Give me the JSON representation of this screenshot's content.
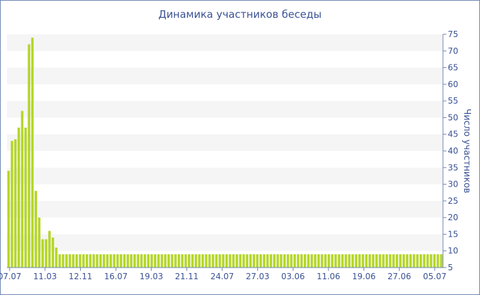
{
  "chart_data": {
    "type": "bar",
    "title": "Динамика участников беседы",
    "xlabel": "",
    "ylabel": "Число участников",
    "ylim": [
      5,
      75
    ],
    "y_ticks": [
      5,
      10,
      15,
      20,
      25,
      30,
      35,
      40,
      45,
      50,
      55,
      60,
      65,
      70,
      75
    ],
    "y_axis_side": "right",
    "x_tick_labels": [
      "07.07",
      "11.03",
      "12.11",
      "16.07",
      "19.03",
      "21.11",
      "24.07",
      "27.03",
      "03.06",
      "11.06",
      "19.06",
      "27.06",
      "05.07"
    ],
    "grid": "horizontal alternating bands",
    "colors": {
      "bar": "#b5d62b",
      "band": "#f5f5f5",
      "text": "#3a5294",
      "axis": "#6d86b3"
    },
    "series": [
      {
        "values": [
          34,
          43,
          43.5,
          47,
          52,
          47,
          72,
          74,
          28,
          20,
          13.5,
          13.5,
          16,
          14,
          11,
          9,
          9,
          9,
          9,
          9,
          9,
          9,
          9,
          9,
          9,
          9,
          9,
          9,
          9,
          9,
          9,
          9,
          9,
          9,
          9,
          9,
          9,
          9,
          9,
          9,
          9,
          9,
          9,
          9,
          9,
          9,
          9,
          9,
          9,
          9,
          9,
          9,
          9,
          9,
          9,
          9,
          9,
          9,
          9,
          9,
          9,
          9,
          9,
          9,
          9,
          9,
          9,
          9,
          9,
          9,
          9,
          9,
          9,
          9,
          9,
          9,
          9,
          9,
          9,
          9,
          9,
          9,
          9,
          9,
          9,
          9,
          9,
          9,
          9,
          9,
          9,
          9,
          9,
          9,
          9,
          9,
          9,
          9,
          9,
          9,
          9,
          9,
          9,
          9,
          9,
          9,
          9,
          9,
          9,
          9,
          9,
          9,
          9,
          9,
          9,
          9,
          9,
          9,
          9,
          9,
          9,
          9,
          9,
          9,
          9,
          9,
          9,
          9
        ]
      }
    ]
  }
}
